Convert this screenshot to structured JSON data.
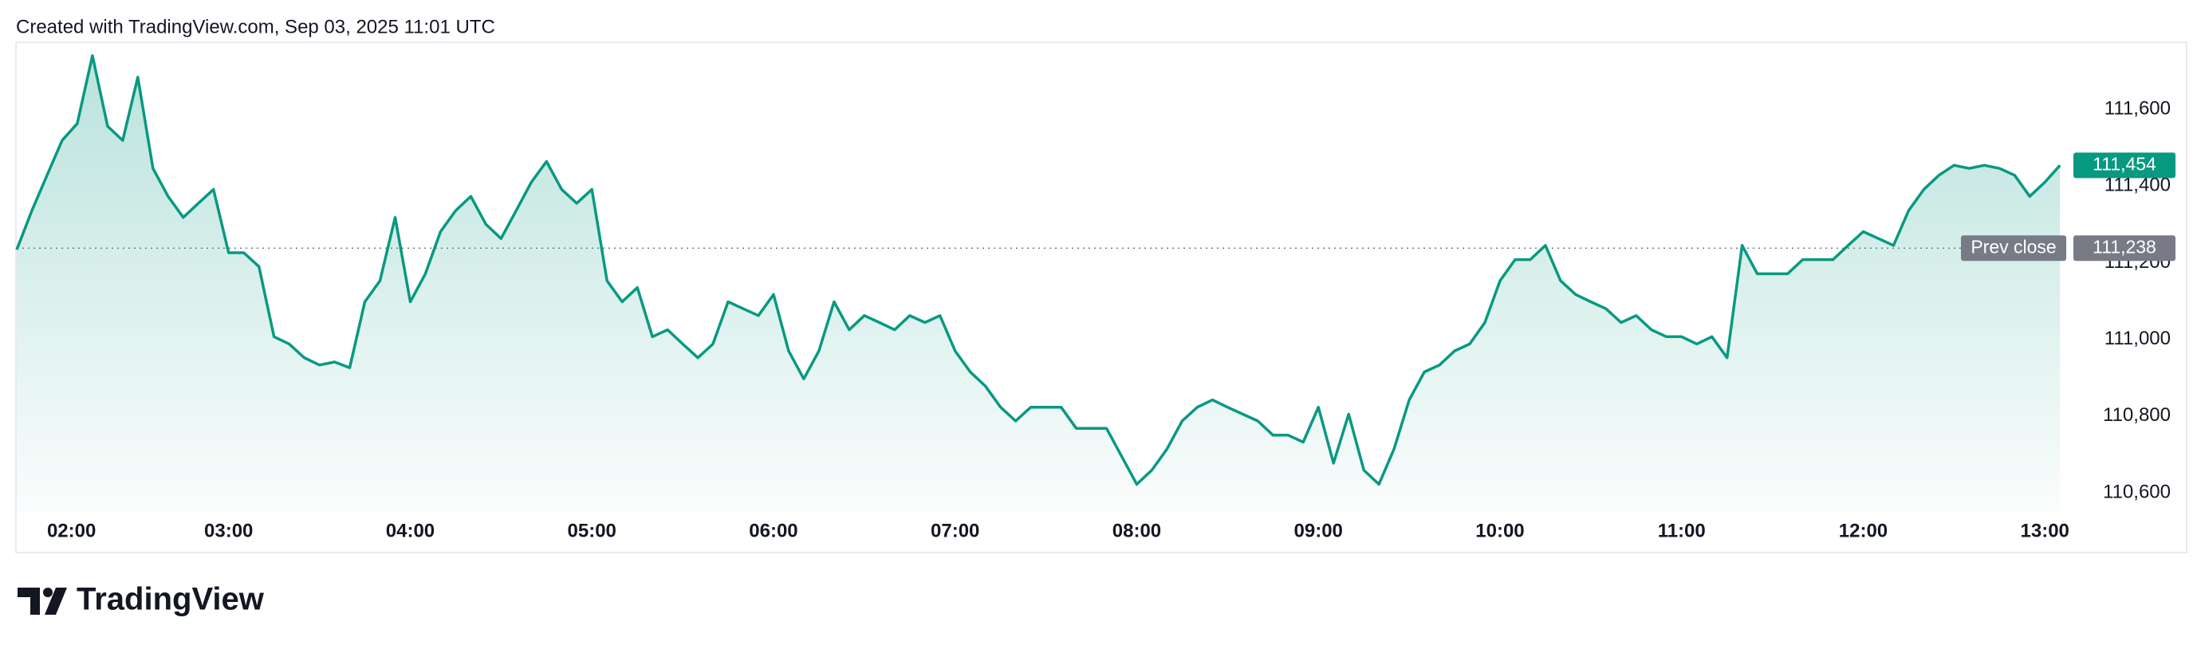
{
  "header": "Created with TradingView.com, Sep 03, 2025 11:01 UTC",
  "footer": {
    "logo_text": "TradingView"
  },
  "chart_data": {
    "type": "area",
    "color": "#089981",
    "x": [
      "01:50",
      "01:55",
      "02:00",
      "02:05",
      "02:10",
      "02:15",
      "02:20",
      "02:25",
      "02:30",
      "02:35",
      "02:40",
      "02:45",
      "02:50",
      "02:55",
      "03:00",
      "03:05",
      "03:10",
      "03:15",
      "03:20",
      "03:25",
      "03:30",
      "03:35",
      "03:40",
      "03:45",
      "03:50",
      "03:55",
      "04:00",
      "04:05",
      "04:10",
      "04:15",
      "04:20",
      "04:25",
      "04:30",
      "04:35",
      "04:40",
      "04:45",
      "04:50",
      "04:55",
      "05:00",
      "05:05",
      "05:10",
      "05:15",
      "05:20",
      "05:25",
      "05:30",
      "05:35",
      "05:40",
      "05:45",
      "05:50",
      "05:55",
      "06:00",
      "06:05",
      "06:10",
      "06:15",
      "06:20",
      "06:25",
      "06:30",
      "06:35",
      "06:40",
      "06:45",
      "06:50",
      "06:55",
      "07:00",
      "07:05",
      "07:10",
      "07:15",
      "07:20",
      "07:25",
      "07:30",
      "07:35",
      "07:40",
      "07:45",
      "07:50",
      "07:55",
      "08:00",
      "08:05",
      "08:10",
      "08:15",
      "08:20",
      "08:25",
      "08:30",
      "08:35",
      "08:40",
      "08:45",
      "08:50",
      "08:55",
      "09:00",
      "09:05",
      "09:10",
      "09:15",
      "09:20",
      "09:25",
      "09:30",
      "09:35",
      "09:40",
      "09:45",
      "09:50",
      "09:55",
      "10:00",
      "10:05",
      "10:10",
      "10:15",
      "10:20",
      "10:25",
      "10:30",
      "10:35",
      "10:40",
      "10:45",
      "10:50",
      "10:55",
      "11:00",
      "11:05",
      "11:10",
      "11:15",
      "11:20",
      "11:25",
      "11:30",
      "11:35",
      "11:40",
      "11:45",
      "11:50",
      "11:55",
      "12:00",
      "12:05",
      "12:10",
      "12:15",
      "12:20",
      "12:25",
      "12:30",
      "12:35",
      "12:40",
      "12:45",
      "12:50",
      "12:55",
      "13:00",
      "13:05"
    ],
    "values": [
      111234,
      111336,
      111428,
      111519,
      111563,
      111740,
      111556,
      111519,
      111684,
      111446,
      111373,
      111318,
      111355,
      111391,
      111226,
      111226,
      111190,
      111007,
      110988,
      110952,
      110933,
      110941,
      110926,
      111098,
      111153,
      111318,
      111098,
      111171,
      111281,
      111336,
      111373,
      111300,
      111263,
      111336,
      111410,
      111464,
      111391,
      111355,
      111391,
      111153,
      111098,
      111135,
      111007,
      111025,
      110988,
      110952,
      110988,
      111098,
      111080,
      111062,
      111117,
      110970,
      110897,
      110970,
      111098,
      111025,
      111062,
      111044,
      111025,
      111062,
      111044,
      111062,
      110970,
      110915,
      110878,
      110823,
      110787,
      110823,
      110823,
      110823,
      110768,
      110768,
      110768,
      110695,
      110622,
      110659,
      110714,
      110787,
      110823,
      110842,
      110823,
      110805,
      110787,
      110750,
      110750,
      110732,
      110823,
      110677,
      110805,
      110659,
      110622,
      110714,
      110842,
      110915,
      110933,
      110970,
      110988,
      111044,
      111153,
      111208,
      111208,
      111245,
      111153,
      111117,
      111098,
      111080,
      111044,
      111062,
      111025,
      111007,
      111007,
      110988,
      111007,
      110952,
      111245,
      111171,
      111171,
      111171,
      111208,
      111208,
      111208,
      111245,
      111281,
      111263,
      111245,
      111336,
      111391,
      111428,
      111454,
      111446,
      111454,
      111446,
      111428,
      111373,
      111410,
      111454
    ],
    "xlim": [
      "01:50",
      "13:06"
    ],
    "xticks": [
      "02:00",
      "03:00",
      "04:00",
      "05:00",
      "06:00",
      "07:00",
      "08:00",
      "09:00",
      "10:00",
      "11:00",
      "12:00",
      "13:00"
    ],
    "ylim": [
      110550,
      111775
    ],
    "yticks": [
      {
        "value": 110600,
        "label": "110,600"
      },
      {
        "value": 110800,
        "label": "110,800"
      },
      {
        "value": 111000,
        "label": "111,000"
      },
      {
        "value": 111200,
        "label": "111,200"
      },
      {
        "value": 111400,
        "label": "111,400"
      },
      {
        "value": 111600,
        "label": "111,600"
      }
    ],
    "prev_close_text": "Prev close",
    "prev_close": {
      "value": 111238,
      "label": "111,238"
    },
    "last_price": {
      "value": 111454,
      "label": "111,454"
    }
  }
}
